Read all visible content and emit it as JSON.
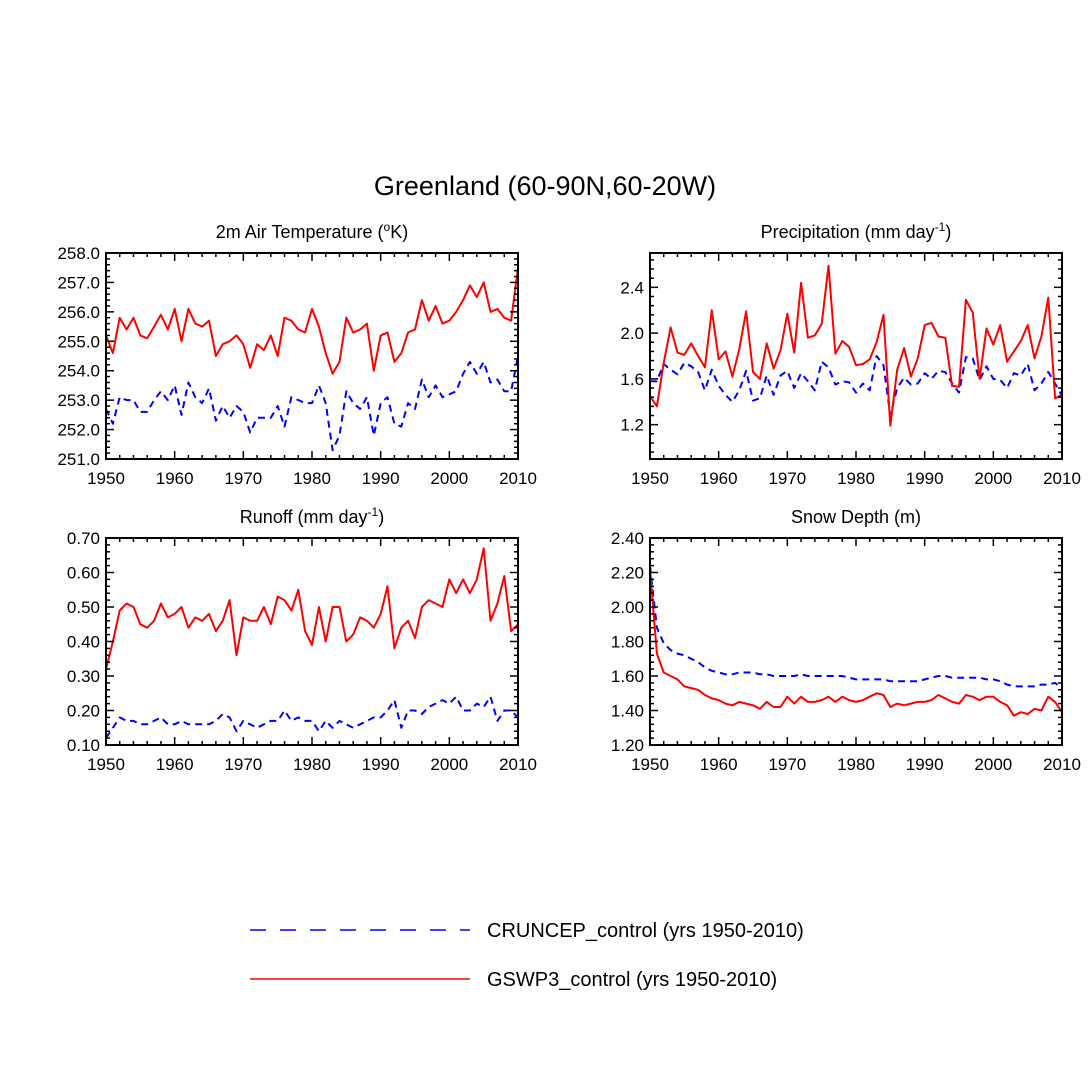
{
  "title": "Greenland (60-90N,60-20W)",
  "legend": [
    {
      "label": "CRUNCEP_control (yrs 1950-2010)",
      "color": "#0000ff",
      "dash": true
    },
    {
      "label": "GSWP3_control (yrs 1950-2010)",
      "color": "#ff0000",
      "dash": false
    }
  ],
  "chart_data": [
    {
      "type": "line",
      "title": "2m Air Temperature (",
      "title_sup": "o",
      "title_tail": "K)",
      "xlim": [
        1950,
        2010
      ],
      "ylim": [
        251,
        258
      ],
      "xticks": [
        "1950",
        "1960",
        "1970",
        "1980",
        "1990",
        "2000",
        "2010"
      ],
      "yticks": [
        "251.0",
        "252.0",
        "253.0",
        "254.0",
        "255.0",
        "256.0",
        "257.0",
        "258.0"
      ],
      "x": [
        1950,
        1951,
        1952,
        1953,
        1954,
        1955,
        1956,
        1957,
        1958,
        1959,
        1960,
        1961,
        1962,
        1963,
        1964,
        1965,
        1966,
        1967,
        1968,
        1969,
        1970,
        1971,
        1972,
        1973,
        1974,
        1975,
        1976,
        1977,
        1978,
        1979,
        1980,
        1981,
        1982,
        1983,
        1984,
        1985,
        1986,
        1987,
        1988,
        1989,
        1990,
        1991,
        1992,
        1993,
        1994,
        1995,
        1996,
        1997,
        1998,
        1999,
        2000,
        2001,
        2002,
        2003,
        2004,
        2005,
        2006,
        2007,
        2008,
        2009,
        2010
      ],
      "series": [
        {
          "name": "CRUNCEP_control (yrs 1950-2010)",
          "color": "#0000ff",
          "dash": true,
          "values": [
            252.7,
            252.2,
            253.1,
            253.0,
            253.0,
            252.6,
            252.6,
            253.0,
            253.3,
            253.0,
            253.5,
            252.5,
            253.6,
            253.1,
            252.9,
            253.4,
            252.3,
            252.8,
            252.4,
            252.8,
            252.6,
            251.9,
            252.4,
            252.4,
            252.4,
            252.8,
            252.1,
            253.1,
            253.0,
            252.9,
            252.9,
            253.5,
            252.9,
            251.3,
            251.8,
            253.3,
            252.9,
            252.7,
            253.1,
            251.8,
            252.9,
            253.1,
            252.2,
            252.1,
            252.9,
            252.7,
            253.7,
            253.1,
            253.5,
            253.1,
            253.2,
            253.3,
            253.9,
            254.3,
            253.9,
            254.3,
            253.6,
            253.7,
            253.3,
            253.3,
            254.5
          ]
        },
        {
          "name": "GSWP3_control (yrs 1950-2010)",
          "color": "#ff0000",
          "dash": false,
          "values": [
            255.2,
            254.6,
            255.8,
            255.4,
            255.8,
            255.2,
            255.1,
            255.5,
            255.9,
            255.4,
            256.1,
            255.0,
            256.1,
            255.6,
            255.5,
            255.7,
            254.5,
            254.9,
            255.0,
            255.2,
            254.9,
            254.1,
            254.9,
            254.7,
            255.2,
            254.5,
            255.8,
            255.7,
            255.4,
            255.3,
            256.1,
            255.5,
            254.6,
            253.9,
            254.3,
            255.8,
            255.3,
            255.4,
            255.6,
            254.0,
            255.2,
            255.3,
            254.3,
            254.6,
            255.3,
            255.4,
            256.4,
            255.7,
            256.2,
            255.6,
            255.7,
            256.0,
            256.4,
            256.9,
            256.5,
            257.0,
            256.0,
            256.1,
            255.8,
            255.7,
            257.5
          ]
        }
      ]
    },
    {
      "type": "line",
      "title": "Precipitation (mm day",
      "title_sup": "-1",
      "title_tail": ")",
      "xlim": [
        1950,
        2010
      ],
      "ylim": [
        0.9,
        2.7
      ],
      "xticks": [
        "1950",
        "1960",
        "1970",
        "1980",
        "1990",
        "2000",
        "2010"
      ],
      "yticks": [
        "1.2",
        "1.6",
        "2.0",
        "2.4"
      ],
      "x": [
        1950,
        1951,
        1952,
        1953,
        1954,
        1955,
        1956,
        1957,
        1958,
        1959,
        1960,
        1961,
        1962,
        1963,
        1964,
        1965,
        1966,
        1967,
        1968,
        1969,
        1970,
        1971,
        1972,
        1973,
        1974,
        1975,
        1976,
        1977,
        1978,
        1979,
        1980,
        1981,
        1982,
        1983,
        1984,
        1985,
        1986,
        1987,
        1988,
        1989,
        1990,
        1991,
        1992,
        1993,
        1994,
        1995,
        1996,
        1997,
        1998,
        1999,
        2000,
        2001,
        2002,
        2003,
        2004,
        2005,
        2006,
        2007,
        2008,
        2009,
        2010
      ],
      "series": [
        {
          "name": "CRUNCEP_control (yrs 1950-2010)",
          "color": "#0000ff",
          "dash": true,
          "values": [
            1.58,
            1.58,
            1.73,
            1.68,
            1.64,
            1.74,
            1.71,
            1.66,
            1.5,
            1.68,
            1.54,
            1.46,
            1.4,
            1.5,
            1.67,
            1.41,
            1.43,
            1.63,
            1.46,
            1.63,
            1.67,
            1.52,
            1.65,
            1.58,
            1.5,
            1.75,
            1.7,
            1.55,
            1.58,
            1.57,
            1.48,
            1.56,
            1.5,
            1.8,
            1.72,
            1.28,
            1.52,
            1.61,
            1.55,
            1.56,
            1.65,
            1.6,
            1.67,
            1.66,
            1.56,
            1.48,
            1.79,
            1.78,
            1.59,
            1.71,
            1.6,
            1.59,
            1.52,
            1.65,
            1.63,
            1.73,
            1.5,
            1.56,
            1.66,
            1.56,
            1.45
          ]
        },
        {
          "name": "GSWP3_control (yrs 1950-2010)",
          "color": "#ff0000",
          "dash": false,
          "values": [
            1.45,
            1.36,
            1.74,
            2.05,
            1.83,
            1.81,
            1.91,
            1.8,
            1.7,
            2.2,
            1.77,
            1.84,
            1.62,
            1.86,
            2.19,
            1.66,
            1.6,
            1.91,
            1.69,
            1.85,
            2.17,
            1.83,
            2.44,
            1.96,
            1.98,
            2.08,
            2.59,
            1.82,
            1.93,
            1.88,
            1.72,
            1.73,
            1.77,
            1.92,
            2.16,
            1.19,
            1.68,
            1.87,
            1.62,
            1.78,
            2.07,
            2.09,
            1.97,
            1.96,
            1.54,
            1.53,
            2.29,
            2.18,
            1.6,
            2.04,
            1.9,
            2.07,
            1.75,
            1.84,
            1.93,
            2.07,
            1.78,
            1.97,
            2.31,
            1.43,
            1.46
          ]
        }
      ]
    },
    {
      "type": "line",
      "title": "Runoff (mm day",
      "title_sup": "-1",
      "title_tail": ")",
      "xlim": [
        1950,
        2010
      ],
      "ylim": [
        0.1,
        0.7
      ],
      "xticks": [
        "1950",
        "1960",
        "1970",
        "1980",
        "1990",
        "2000",
        "2010"
      ],
      "yticks": [
        "0.10",
        "0.20",
        "0.30",
        "0.40",
        "0.50",
        "0.60",
        "0.70"
      ],
      "x": [
        1950,
        1951,
        1952,
        1953,
        1954,
        1955,
        1956,
        1957,
        1958,
        1959,
        1960,
        1961,
        1962,
        1963,
        1964,
        1965,
        1966,
        1967,
        1968,
        1969,
        1970,
        1971,
        1972,
        1973,
        1974,
        1975,
        1976,
        1977,
        1978,
        1979,
        1980,
        1981,
        1982,
        1983,
        1984,
        1985,
        1986,
        1987,
        1988,
        1989,
        1990,
        1991,
        1992,
        1993,
        1994,
        1995,
        1996,
        1997,
        1998,
        1999,
        2000,
        2001,
        2002,
        2003,
        2004,
        2005,
        2006,
        2007,
        2008,
        2009,
        2010
      ],
      "series": [
        {
          "name": "CRUNCEP_control (yrs 1950-2010)",
          "color": "#0000ff",
          "dash": true,
          "values": [
            0.12,
            0.15,
            0.18,
            0.17,
            0.17,
            0.16,
            0.16,
            0.17,
            0.18,
            0.16,
            0.16,
            0.17,
            0.16,
            0.16,
            0.16,
            0.16,
            0.17,
            0.19,
            0.18,
            0.14,
            0.17,
            0.16,
            0.15,
            0.16,
            0.17,
            0.17,
            0.2,
            0.17,
            0.18,
            0.17,
            0.17,
            0.14,
            0.17,
            0.15,
            0.17,
            0.16,
            0.15,
            0.16,
            0.17,
            0.18,
            0.18,
            0.2,
            0.23,
            0.15,
            0.2,
            0.2,
            0.19,
            0.21,
            0.22,
            0.23,
            0.22,
            0.24,
            0.2,
            0.2,
            0.22,
            0.21,
            0.24,
            0.17,
            0.2,
            0.2,
            0.18
          ]
        },
        {
          "name": "GSWP3_control (yrs 1950-2010)",
          "color": "#ff0000",
          "dash": false,
          "values": [
            0.32,
            0.4,
            0.49,
            0.51,
            0.5,
            0.45,
            0.44,
            0.46,
            0.51,
            0.47,
            0.48,
            0.5,
            0.44,
            0.47,
            0.46,
            0.48,
            0.43,
            0.46,
            0.52,
            0.36,
            0.47,
            0.46,
            0.46,
            0.5,
            0.45,
            0.53,
            0.52,
            0.49,
            0.55,
            0.43,
            0.39,
            0.5,
            0.4,
            0.5,
            0.5,
            0.4,
            0.42,
            0.47,
            0.46,
            0.44,
            0.48,
            0.56,
            0.38,
            0.44,
            0.46,
            0.41,
            0.5,
            0.52,
            0.51,
            0.5,
            0.58,
            0.54,
            0.58,
            0.54,
            0.58,
            0.67,
            0.46,
            0.51,
            0.59,
            0.43,
            0.45
          ]
        }
      ]
    },
    {
      "type": "line",
      "title": "Snow Depth (m)",
      "title_sup": "",
      "title_tail": "",
      "xlim": [
        1950,
        2010
      ],
      "ylim": [
        1.2,
        2.4
      ],
      "xticks": [
        "1950",
        "1960",
        "1970",
        "1980",
        "1990",
        "2000",
        "2010"
      ],
      "yticks": [
        "1.20",
        "1.40",
        "1.60",
        "1.80",
        "2.00",
        "2.20",
        "2.40"
      ],
      "x": [
        1950,
        1951,
        1952,
        1953,
        1954,
        1955,
        1956,
        1957,
        1958,
        1959,
        1960,
        1961,
        1962,
        1963,
        1964,
        1965,
        1966,
        1967,
        1968,
        1969,
        1970,
        1971,
        1972,
        1973,
        1974,
        1975,
        1976,
        1977,
        1978,
        1979,
        1980,
        1981,
        1982,
        1983,
        1984,
        1985,
        1986,
        1987,
        1988,
        1989,
        1990,
        1991,
        1992,
        1993,
        1994,
        1995,
        1996,
        1997,
        1998,
        1999,
        2000,
        2001,
        2002,
        2003,
        2004,
        2005,
        2006,
        2007,
        2008,
        2009,
        2010
      ],
      "series": [
        {
          "name": "CRUNCEP_control (yrs 1950-2010)",
          "color": "#0000ff",
          "dash": true,
          "values": [
            2.24,
            1.88,
            1.79,
            1.75,
            1.73,
            1.72,
            1.7,
            1.68,
            1.65,
            1.63,
            1.62,
            1.61,
            1.61,
            1.62,
            1.62,
            1.62,
            1.61,
            1.61,
            1.6,
            1.6,
            1.6,
            1.6,
            1.61,
            1.6,
            1.6,
            1.6,
            1.6,
            1.6,
            1.6,
            1.59,
            1.58,
            1.58,
            1.58,
            1.58,
            1.58,
            1.57,
            1.57,
            1.57,
            1.57,
            1.57,
            1.58,
            1.59,
            1.6,
            1.6,
            1.59,
            1.59,
            1.59,
            1.59,
            1.59,
            1.58,
            1.58,
            1.57,
            1.55,
            1.54,
            1.54,
            1.54,
            1.54,
            1.55,
            1.55,
            1.56,
            1.53
          ]
        },
        {
          "name": "GSWP3_control (yrs 1950-2010)",
          "color": "#ff0000",
          "dash": false,
          "values": [
            2.22,
            1.73,
            1.62,
            1.6,
            1.58,
            1.54,
            1.53,
            1.52,
            1.49,
            1.47,
            1.46,
            1.44,
            1.43,
            1.45,
            1.44,
            1.43,
            1.41,
            1.45,
            1.42,
            1.42,
            1.48,
            1.44,
            1.48,
            1.45,
            1.45,
            1.46,
            1.48,
            1.45,
            1.48,
            1.46,
            1.45,
            1.46,
            1.48,
            1.5,
            1.49,
            1.42,
            1.44,
            1.43,
            1.44,
            1.45,
            1.45,
            1.46,
            1.49,
            1.47,
            1.45,
            1.44,
            1.49,
            1.48,
            1.46,
            1.48,
            1.48,
            1.45,
            1.43,
            1.37,
            1.39,
            1.38,
            1.41,
            1.4,
            1.48,
            1.45,
            1.39
          ]
        }
      ]
    }
  ]
}
